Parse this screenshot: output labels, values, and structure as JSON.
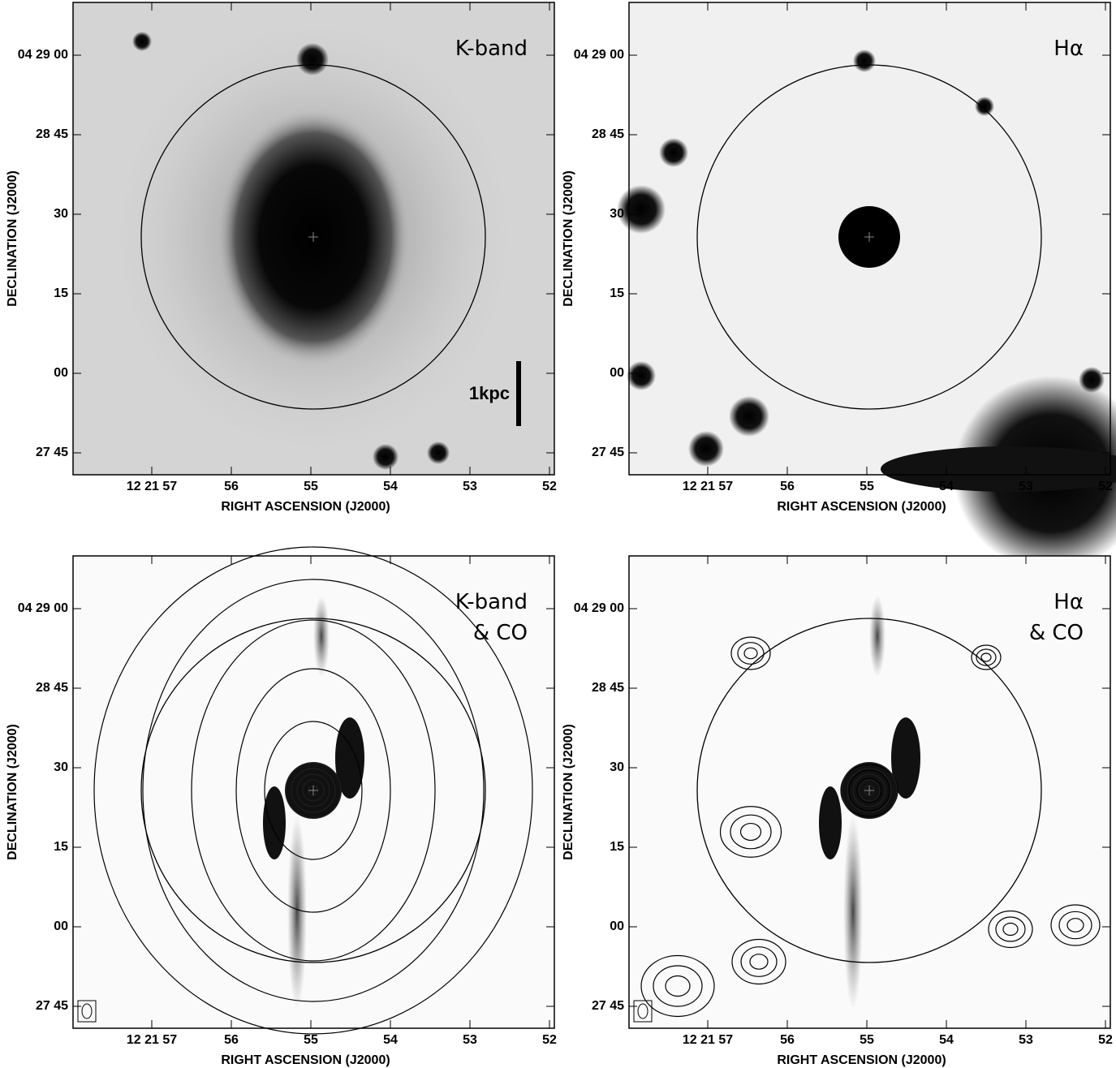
{
  "figure": {
    "x_label": "RIGHT ASCENSION (J2000)",
    "y_label": "DECLINATION (J2000)",
    "x_ticks": [
      "12 21 57",
      "56",
      "55",
      "54",
      "53",
      "52"
    ],
    "y_ticks": [
      "04 29 00",
      "28 45",
      "30",
      "15",
      "00",
      "27 45"
    ],
    "panels": [
      {
        "label": [
          "K-band"
        ],
        "scale_bar": "1kpc"
      },
      {
        "label": [
          "Hα"
        ]
      },
      {
        "label": [
          "K-band",
          "& CO"
        ]
      },
      {
        "label": [
          "Hα",
          "& CO"
        ]
      }
    ]
  }
}
